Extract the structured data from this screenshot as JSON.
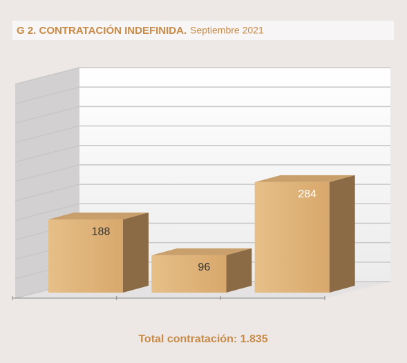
{
  "chart_data": {
    "type": "bar3d",
    "title": "G 2. CONTRATACIÓN INDEFINIDA.",
    "subtitle": "Septiembre 2021",
    "footer": "Total contratación: 1.835",
    "categories": [
      null,
      null,
      null
    ],
    "values": [
      188,
      96,
      284
    ],
    "color": "#dfb47c",
    "ylim": [
      0,
      550
    ],
    "yticks": [
      0,
      50,
      100,
      150,
      200,
      250,
      300,
      350,
      400,
      450,
      500,
      550
    ],
    "grid": true
  }
}
